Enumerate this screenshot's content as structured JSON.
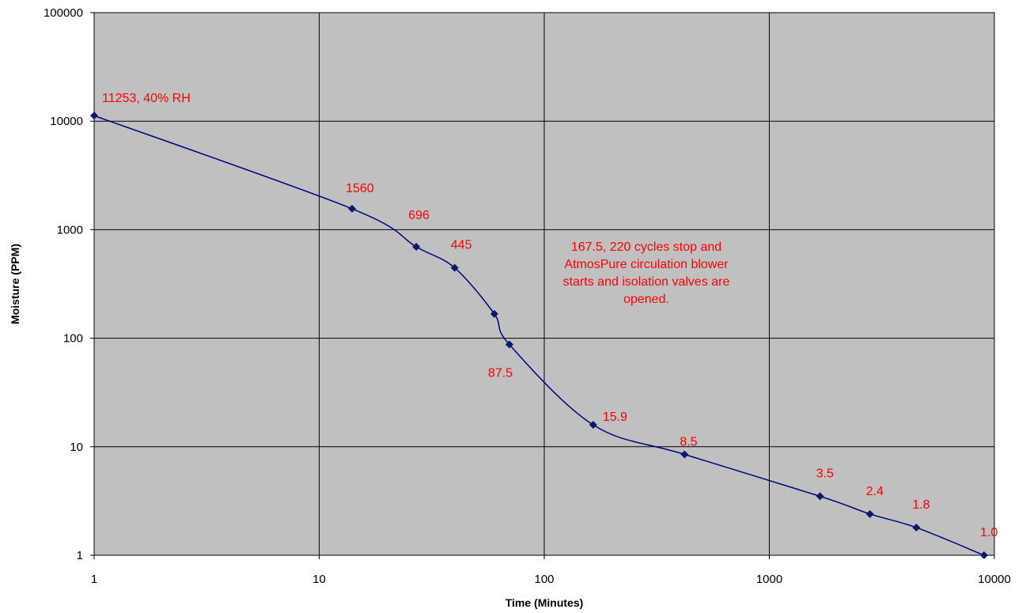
{
  "chart_data": {
    "type": "line",
    "x_scale": "log",
    "y_scale": "log",
    "xlabel": "Time (Minutes)",
    "ylabel": "Moisture (PPM)",
    "xlim": [
      1,
      10000
    ],
    "ylim": [
      1,
      100000
    ],
    "grid": true,
    "x_ticks": [
      1,
      10,
      100,
      1000,
      10000
    ],
    "x_tick_labels": [
      "1",
      "10",
      "100",
      "1000",
      "10000"
    ],
    "y_ticks": [
      1,
      10,
      100,
      1000,
      10000,
      100000
    ],
    "y_tick_labels": [
      "1",
      "10",
      "100",
      "1000",
      "10000",
      "100000"
    ],
    "colors": {
      "plot_background": "#c0c0c0",
      "series": "#00007f",
      "markers": "#0a1a6b",
      "annotations": "#ff0000",
      "grid": "#000000"
    },
    "series": [
      {
        "x": [
          1,
          14,
          27,
          40,
          60,
          70,
          165,
          420,
          1680,
          2800,
          4500,
          9000
        ],
        "y": [
          11253,
          1560,
          696,
          445,
          167.5,
          87.5,
          15.9,
          8.5,
          3.5,
          2.4,
          1.8,
          1.0
        ]
      }
    ],
    "data_labels": [
      {
        "x": 1,
        "y": 11253,
        "text": "11253, 40% RH"
      },
      {
        "x": 14,
        "y": 1560,
        "text": "1560"
      },
      {
        "x": 27,
        "y": 696,
        "text": "696"
      },
      {
        "x": 40,
        "y": 445,
        "text": "445"
      },
      {
        "x": 70,
        "y": 87.5,
        "text": "87.5"
      },
      {
        "x": 165,
        "y": 15.9,
        "text": "15.9"
      },
      {
        "x": 420,
        "y": 8.5,
        "text": "8.5"
      },
      {
        "x": 1680,
        "y": 3.5,
        "text": "3.5"
      },
      {
        "x": 2800,
        "y": 2.4,
        "text": "2.4"
      },
      {
        "x": 4500,
        "y": 1.8,
        "text": "1.8"
      },
      {
        "x": 9000,
        "y": 1.0,
        "text": "1.0"
      }
    ],
    "annotation": {
      "x": 60,
      "y": 167.5,
      "lines": [
        "167.5, 220 cycles stop and",
        "AtmosPure circulation blower",
        "starts and isolation valves are",
        "opened."
      ]
    }
  }
}
